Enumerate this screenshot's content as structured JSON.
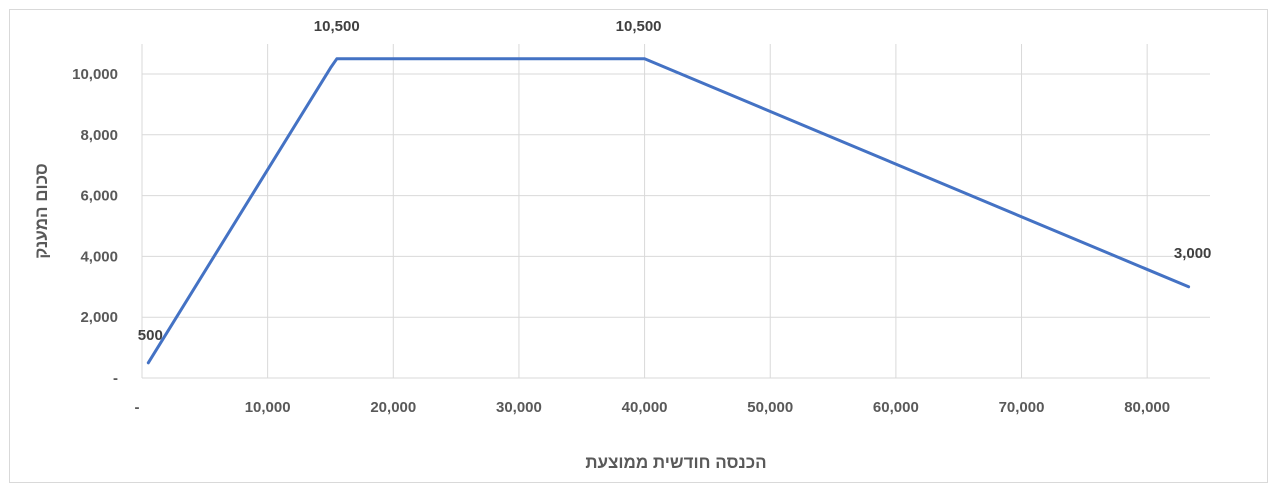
{
  "chart_data": {
    "type": "line",
    "title": "",
    "xlabel": "הכנסה חודשית ממוצעת",
    "ylabel": "סכום המענק",
    "xlim": [
      0,
      85000
    ],
    "ylim": [
      0,
      11000
    ],
    "x_ticks": [
      0,
      10000,
      20000,
      30000,
      40000,
      50000,
      60000,
      70000,
      80000
    ],
    "x_tick_labels": [
      "-",
      "10,000",
      "20,000",
      "30,000",
      "40,000",
      "50,000",
      "60,000",
      "70,000",
      "80,000"
    ],
    "y_ticks": [
      0,
      2000,
      4000,
      6000,
      8000,
      10000
    ],
    "y_tick_labels": [
      "-",
      "2,000",
      "4,000",
      "6,000",
      "8,000",
      "10,000"
    ],
    "grid": true,
    "series": [
      {
        "color": "#4472c4",
        "x": [
          500,
          15000,
          15500,
          16000,
          39500,
          40000,
          83300
        ],
        "y": [
          500,
          10200,
          10500,
          10500,
          10500,
          10500,
          3000
        ]
      }
    ],
    "data_labels": [
      {
        "x": 500,
        "y": 500,
        "text": "500"
      },
      {
        "x": 15500,
        "y": 10500,
        "text": "10,500"
      },
      {
        "x": 40000,
        "y": 10500,
        "text": "10,500"
      },
      {
        "x": 83300,
        "y": 3000,
        "text": "3,000"
      }
    ]
  }
}
